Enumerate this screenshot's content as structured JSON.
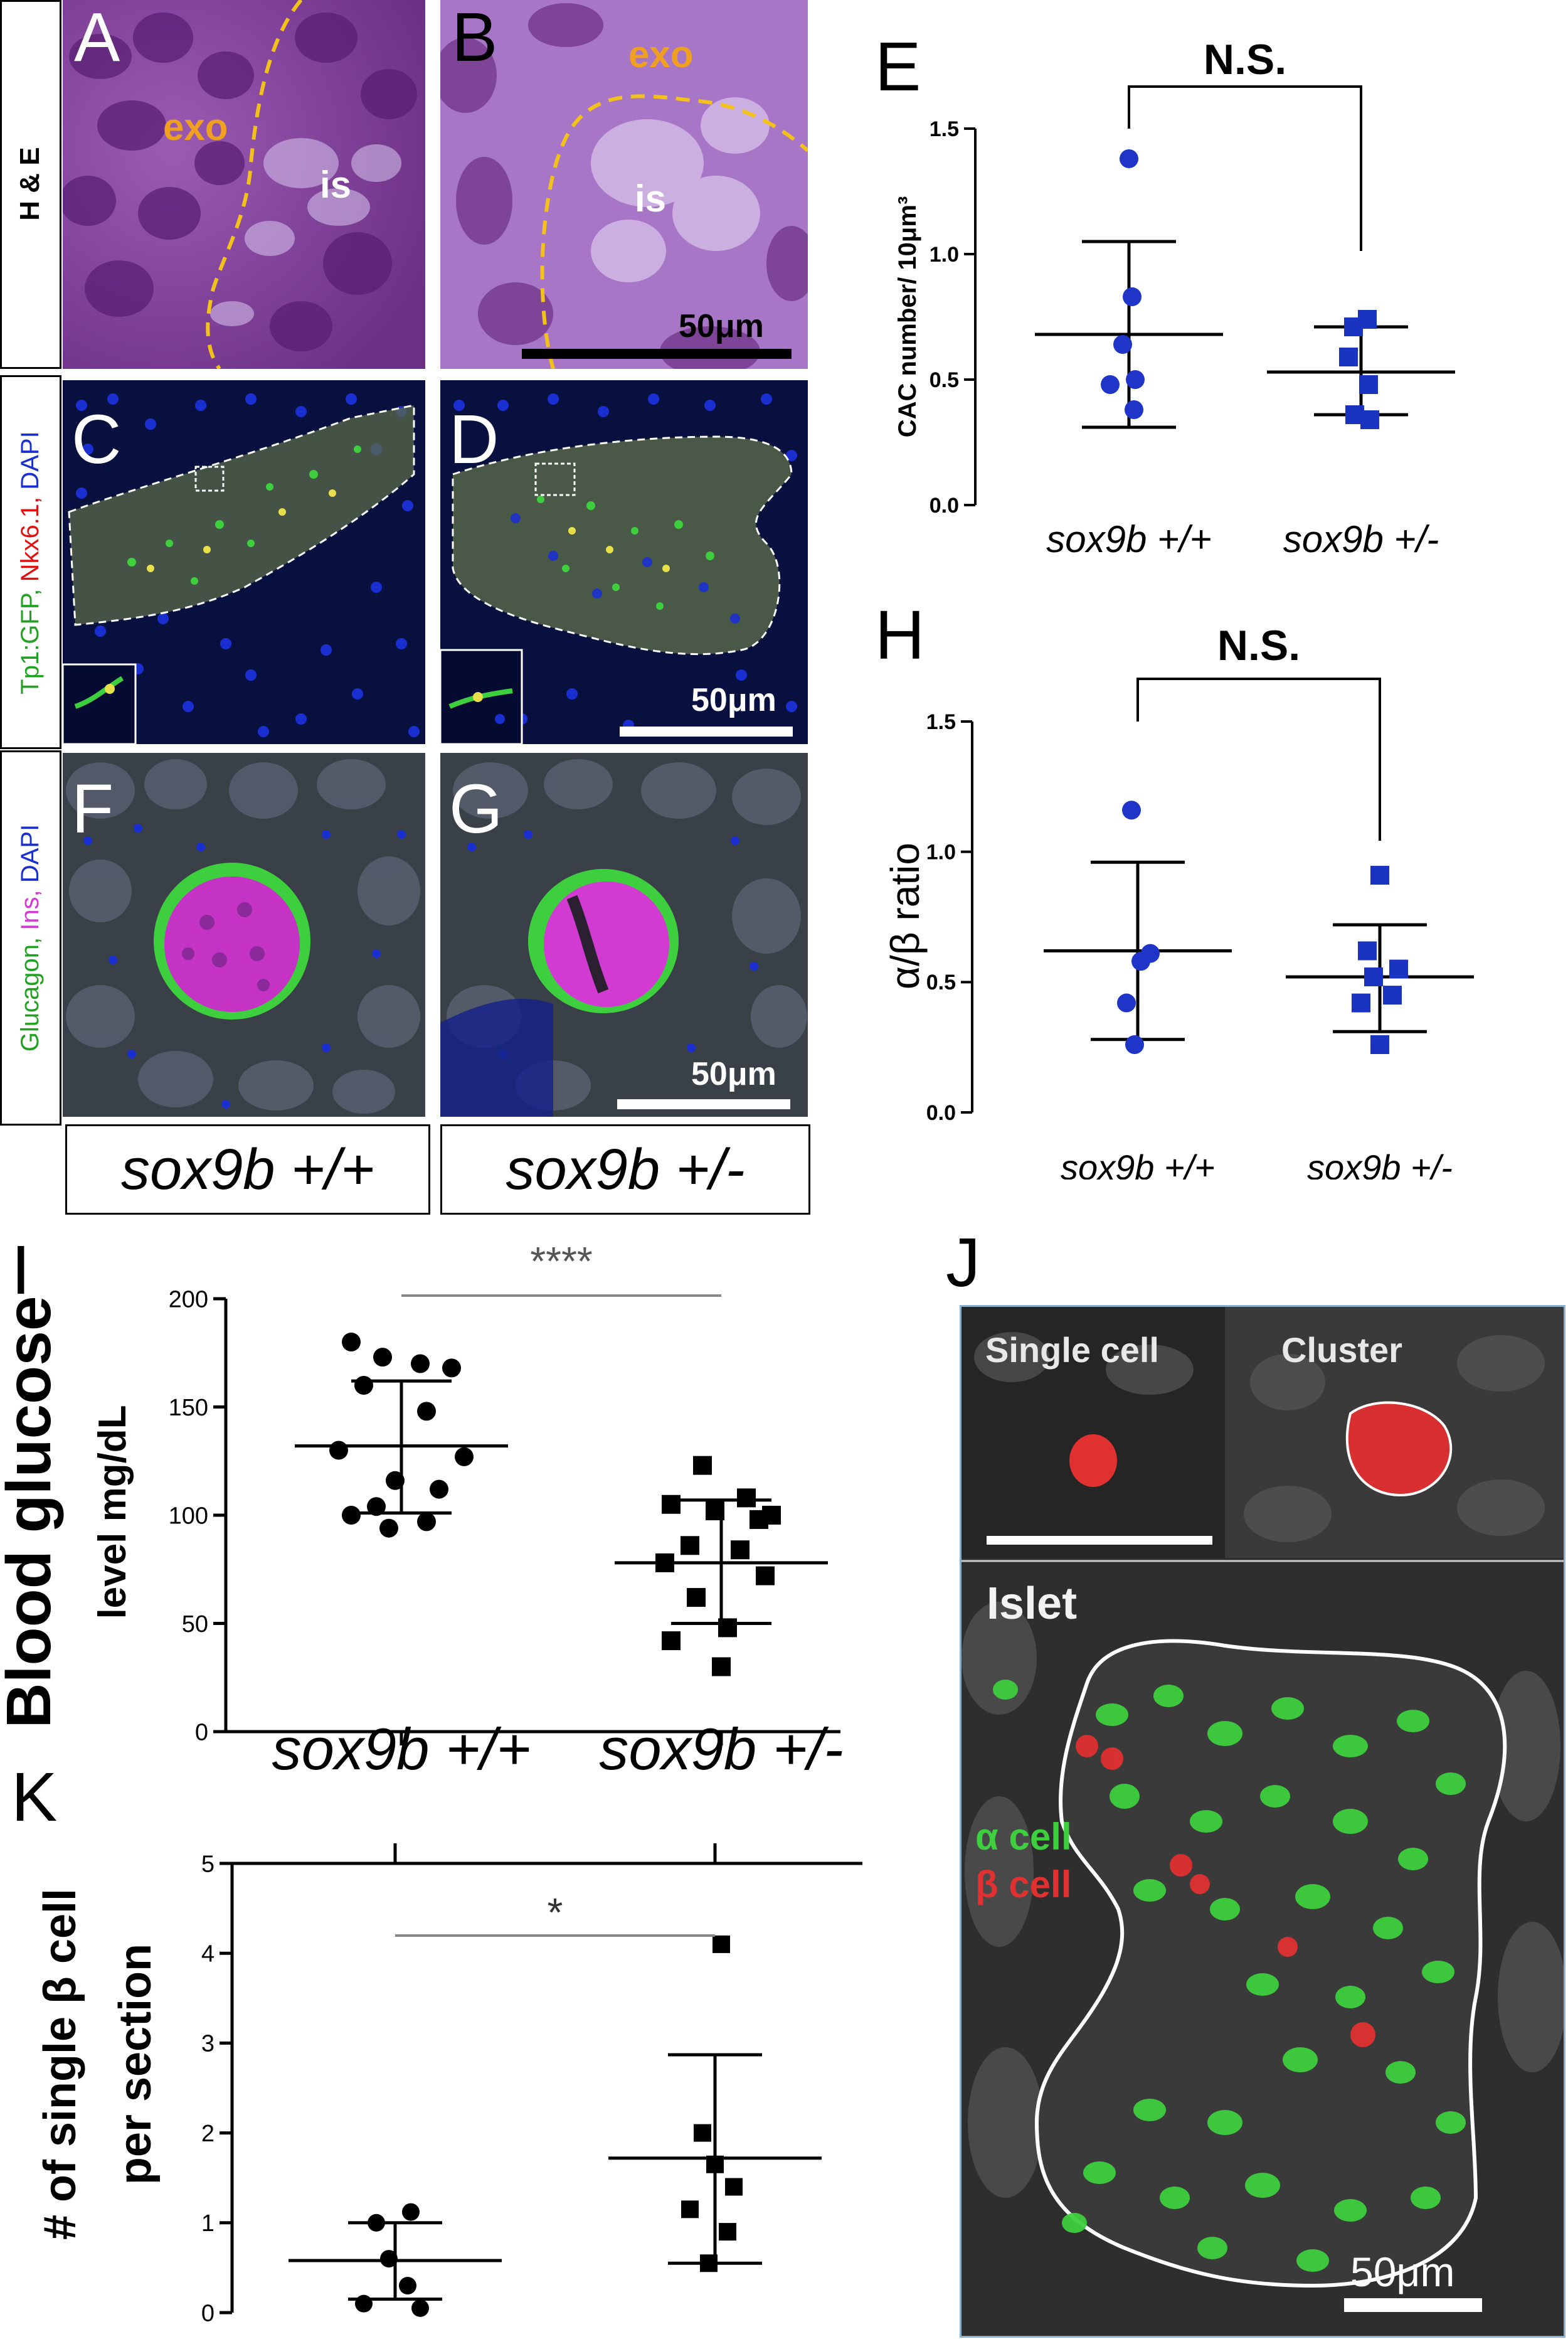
{
  "labels": {
    "A": "A",
    "B": "B",
    "C": "C",
    "D": "D",
    "E": "E",
    "F": "F",
    "G": "G",
    "H": "H",
    "I": "I",
    "J": "J",
    "K": "K"
  },
  "row_labels": {
    "he": "H & E",
    "tp1_part1": "Tp1:GFP,",
    "tp1_part2": "Nkx6.1,",
    "tp1_part3": "DAPI",
    "glu_part1": "Glucagon,",
    "glu_part2": "Ins,",
    "glu_part3": "DAPI"
  },
  "he_annotations": {
    "exo_a": "exo",
    "is_a": "is",
    "exo_b": "exo",
    "is_b": "is"
  },
  "scale_bars": {
    "b": "50μm",
    "d": "50μm",
    "g": "50μm",
    "j": "50μm"
  },
  "genotypes": {
    "wt": "sox9b +/+",
    "het": "sox9b +/-"
  },
  "panel_j": {
    "single_cell": "Single cell",
    "cluster": "Cluster",
    "islet": "Islet",
    "alpha_cell": "α cell",
    "beta_cell": "β cell"
  },
  "colors": {
    "he_purple": "#8a4a9e",
    "dapi_blue": "#1a2fd0",
    "gfp_green": "#3ecf3e",
    "ins_magenta": "#d23bd2",
    "exo_orange": "#f0a020",
    "dashed_yellow": "#f2c21a",
    "nkx_red": "#ff2020",
    "marker_blue": "#1f35c8",
    "marker_blue_sq": "#1a33c0",
    "mean_gray": "#808080"
  },
  "chart_data": [
    {
      "panel": "E",
      "type": "scatter",
      "ylabel": "CAC number/ 10μm³",
      "categories": [
        "sox9b +/+",
        "sox9b +/-"
      ],
      "yticks": [
        "0.0",
        "0.5",
        "1.0",
        "1.5"
      ],
      "ylim": [
        0,
        1.5
      ],
      "significance": "N.S.",
      "series": [
        {
          "values": [
            1.38,
            0.83,
            0.64,
            0.5,
            0.48,
            0.38
          ],
          "marker": "circle"
        },
        {
          "values": [
            0.74,
            0.71,
            0.59,
            0.48,
            0.36,
            0.34
          ],
          "marker": "square"
        }
      ],
      "means": [
        0.68,
        0.53
      ],
      "sd_upper": [
        1.05,
        0.71
      ],
      "sd_lower": [
        0.31,
        0.36
      ]
    },
    {
      "panel": "H",
      "type": "scatter",
      "ylabel": "α/β ratio",
      "categories": [
        "sox9b +/+",
        "sox9b +/-"
      ],
      "yticks": [
        "0.0",
        "0.5",
        "1.0",
        "1.5"
      ],
      "ylim": [
        0,
        1.5
      ],
      "significance": "N.S.",
      "series": [
        {
          "values": [
            1.16,
            0.61,
            0.58,
            0.42,
            0.26
          ],
          "marker": "circle"
        },
        {
          "values": [
            0.91,
            0.62,
            0.55,
            0.52,
            0.45,
            0.42,
            0.26
          ],
          "marker": "square"
        }
      ],
      "means": [
        0.62,
        0.52
      ],
      "sd_upper": [
        0.96,
        0.72
      ],
      "sd_lower": [
        0.28,
        0.31
      ]
    },
    {
      "panel": "I",
      "type": "scatter",
      "ylabel_line1": "Blood glucose",
      "ylabel_line2": "level mg/dL",
      "categories": [
        "sox9b +/+",
        "sox9b +/-"
      ],
      "yticks": [
        "0",
        "50",
        "100",
        "150",
        "200"
      ],
      "ylim": [
        0,
        200
      ],
      "significance": "****",
      "series": [
        {
          "values": [
            180,
            173,
            170,
            168,
            160,
            148,
            130,
            127,
            116,
            112,
            104,
            100,
            97,
            94
          ],
          "marker": "circle"
        },
        {
          "values": [
            123,
            108,
            105,
            102,
            100,
            98,
            86,
            84,
            78,
            72,
            62,
            48,
            42,
            30
          ],
          "marker": "square"
        }
      ],
      "means": [
        132,
        78
      ],
      "sd_upper": [
        162,
        107
      ],
      "sd_lower": [
        101,
        50
      ]
    },
    {
      "panel": "K",
      "type": "scatter",
      "ylabel_line1": "# of single β cell",
      "ylabel_line2": "per section",
      "categories": [
        "sox9b +/+",
        "sox9b +/-"
      ],
      "yticks": [
        "0",
        "1",
        "2",
        "3",
        "4",
        "5"
      ],
      "ylim": [
        0,
        5
      ],
      "significance": "*",
      "series": [
        {
          "values": [
            1.12,
            1.0,
            0.6,
            0.3,
            0.1,
            0.05
          ],
          "marker": "circle"
        },
        {
          "values": [
            4.1,
            2.0,
            1.65,
            1.4,
            1.15,
            0.9,
            0.55
          ],
          "marker": "square"
        }
      ],
      "means": [
        0.58,
        1.72
      ],
      "sd_upper": [
        1.0,
        2.87
      ],
      "sd_lower": [
        0.15,
        0.55
      ]
    }
  ]
}
